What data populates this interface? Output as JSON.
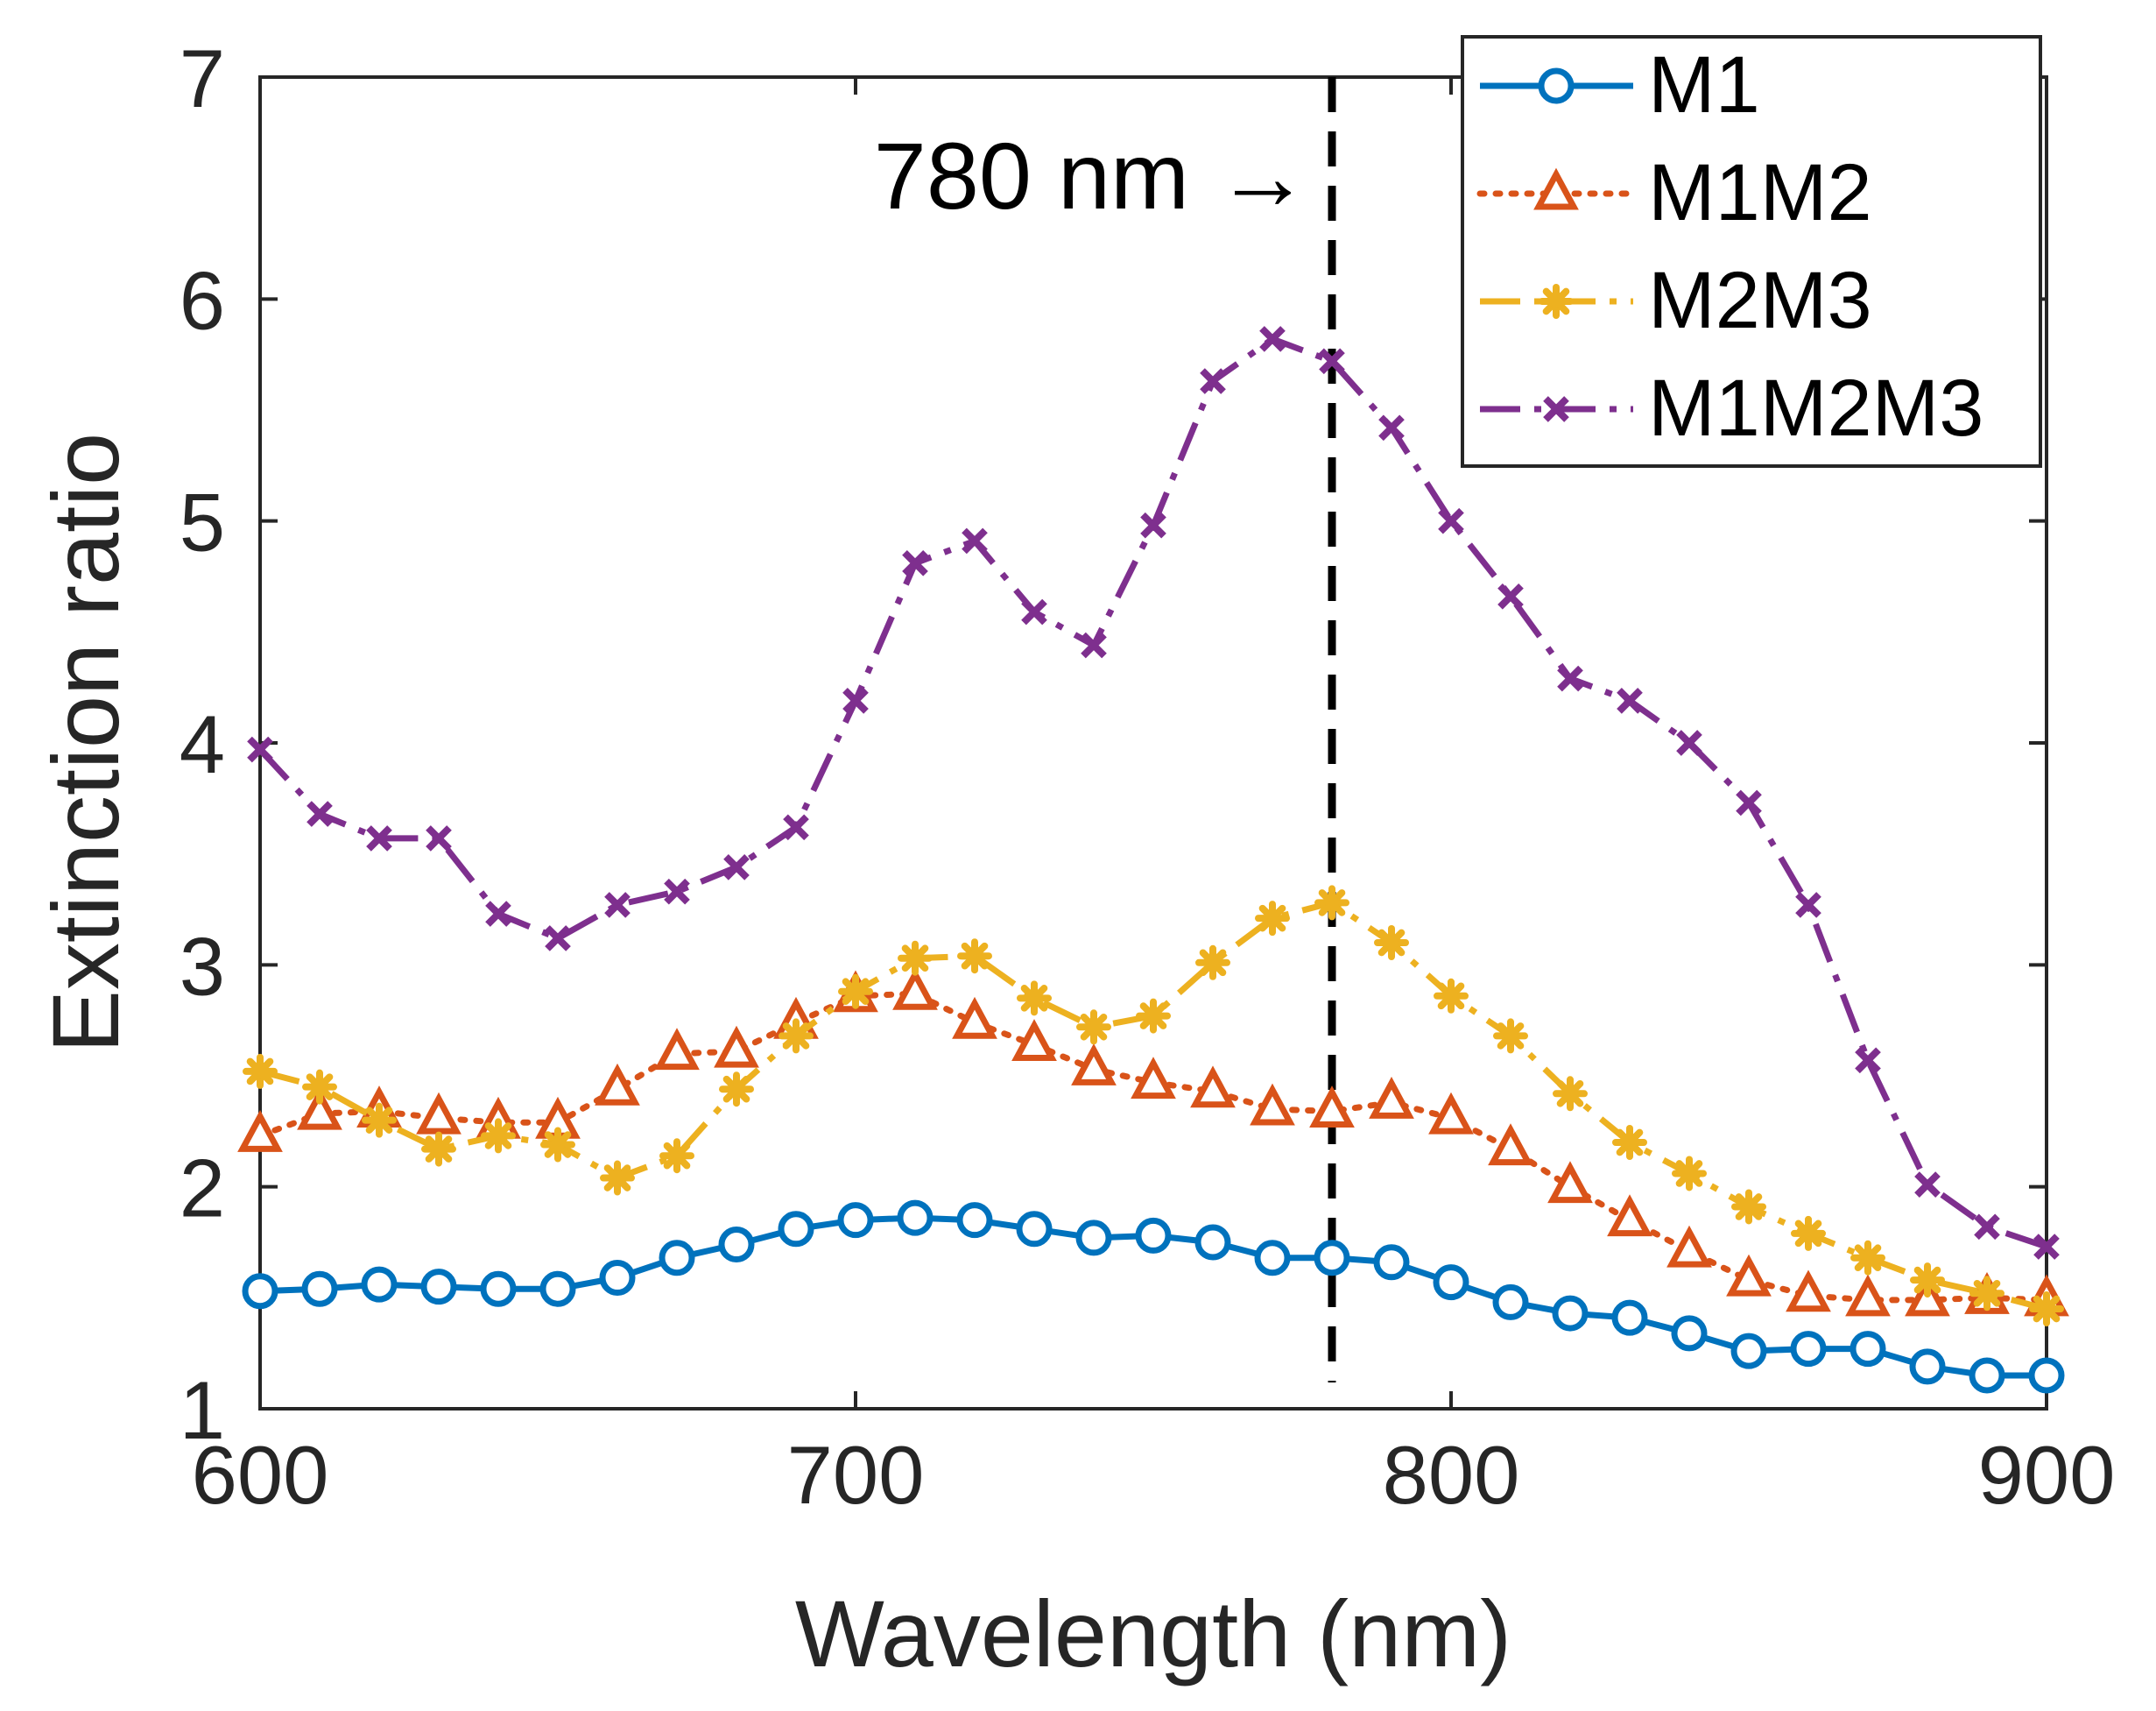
{
  "chart_data": {
    "type": "line",
    "xlabel": "Wavelength (nm)",
    "ylabel": "Extinction ratio",
    "xlim": [
      600,
      900
    ],
    "ylim": [
      1,
      7
    ],
    "xticks": [
      600,
      700,
      800,
      900
    ],
    "yticks": [
      1,
      2,
      3,
      4,
      5,
      6,
      7
    ],
    "xtick_labels": [
      "600",
      "700",
      "800",
      "900"
    ],
    "ytick_labels": [
      "1",
      "2",
      "3",
      "4",
      "5",
      "6",
      "7"
    ],
    "grid": false,
    "legend_position": "top-right",
    "x": [
      600,
      610,
      620,
      630,
      640,
      650,
      660,
      670,
      680,
      690,
      700,
      710,
      720,
      730,
      740,
      750,
      760,
      770,
      780,
      790,
      800,
      810,
      820,
      830,
      840,
      850,
      860,
      870,
      880,
      890,
      900
    ],
    "series": [
      {
        "name": "M1",
        "color": "#0072BD",
        "line_style": "solid",
        "marker": "circle",
        "values": [
          1.53,
          1.54,
          1.56,
          1.55,
          1.54,
          1.54,
          1.59,
          1.68,
          1.74,
          1.81,
          1.85,
          1.86,
          1.85,
          1.81,
          1.77,
          1.78,
          1.75,
          1.68,
          1.68,
          1.66,
          1.57,
          1.48,
          1.43,
          1.41,
          1.34,
          1.26,
          1.27,
          1.27,
          1.19,
          1.15,
          1.15
        ]
      },
      {
        "name": "M1M2",
        "color": "#D95319",
        "line_style": "dotted",
        "marker": "triangle",
        "values": [
          2.23,
          2.33,
          2.34,
          2.31,
          2.29,
          2.29,
          2.44,
          2.6,
          2.61,
          2.74,
          2.86,
          2.87,
          2.74,
          2.64,
          2.53,
          2.47,
          2.43,
          2.35,
          2.34,
          2.38,
          2.31,
          2.17,
          2.0,
          1.85,
          1.71,
          1.58,
          1.51,
          1.49,
          1.49,
          1.5,
          1.49
        ]
      },
      {
        "name": "M2M3",
        "color": "#EDB120",
        "line_style": "dashdot",
        "marker": "asterisk",
        "values": [
          2.52,
          2.45,
          2.3,
          2.17,
          2.23,
          2.19,
          2.04,
          2.14,
          2.44,
          2.68,
          2.88,
          3.03,
          3.04,
          2.85,
          2.72,
          2.77,
          3.01,
          3.21,
          3.28,
          3.1,
          2.86,
          2.68,
          2.42,
          2.2,
          2.06,
          1.91,
          1.79,
          1.68,
          1.58,
          1.52,
          1.45
        ]
      },
      {
        "name": "M1M2M3",
        "color": "#7E2F8E",
        "line_style": "dashdot",
        "marker": "x",
        "values": [
          3.97,
          3.68,
          3.57,
          3.57,
          3.23,
          3.12,
          3.27,
          3.33,
          3.44,
          3.62,
          4.19,
          4.81,
          4.91,
          4.59,
          4.44,
          4.98,
          5.63,
          5.82,
          5.72,
          5.42,
          5.0,
          4.66,
          4.29,
          4.19,
          4.0,
          3.73,
          3.27,
          2.57,
          2.01,
          1.82,
          1.73
        ]
      }
    ],
    "annotations": [
      {
        "text": "780 nm →",
        "x": 780,
        "type": "vertical-dashed-line"
      }
    ]
  }
}
